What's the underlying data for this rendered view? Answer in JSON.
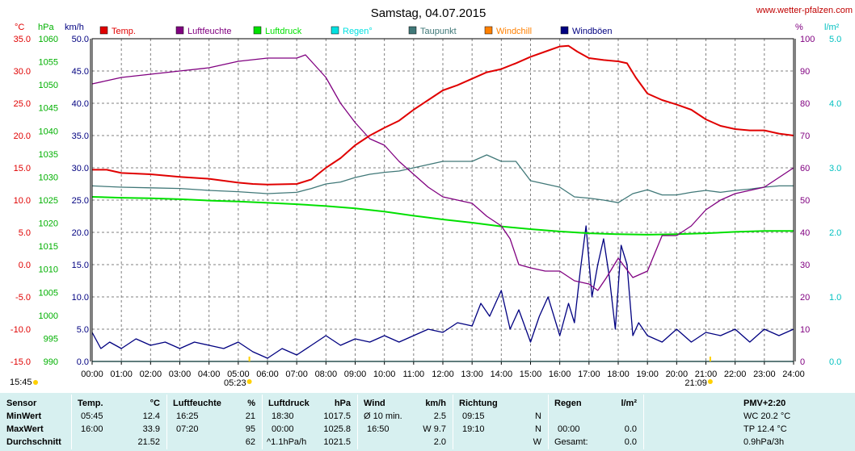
{
  "site": "www.wetter-pfalzen.com",
  "time_left": "15:45",
  "chart_data": {
    "type": "line",
    "title": "Samstag, 04.07.2015",
    "x_ticks": [
      "00:00",
      "01:00",
      "02:00",
      "03:00",
      "04:00",
      "05:00",
      "06:00",
      "07:00",
      "08:00",
      "09:00",
      "10:00",
      "11:00",
      "12:00",
      "13:00",
      "14:00",
      "15:00",
      "16:00",
      "17:00",
      "18:00",
      "19:00",
      "20:00",
      "21:00",
      "22:00",
      "23:00",
      "24:00"
    ],
    "xlim": [
      0,
      24
    ],
    "sunrise": {
      "t": 5.38,
      "label": "05:23"
    },
    "sunset": {
      "t": 21.15,
      "label": "21:09"
    },
    "axes": {
      "temp": {
        "unit": "°C",
        "ticks": [
          "35.0",
          "30.0",
          "25.0",
          "20.0",
          "15.0",
          "10.0",
          "5.0",
          "0.0",
          "-5.0",
          "-10.0",
          "-15.0"
        ],
        "ylim": [
          -15,
          35
        ]
      },
      "pressure": {
        "unit": "hPa",
        "ticks": [
          "1060",
          "1055",
          "1050",
          "1045",
          "1040",
          "1035",
          "1030",
          "1025",
          "1020",
          "1015",
          "1010",
          "1005",
          "1000",
          "995",
          "990"
        ],
        "ylim": [
          990,
          1060
        ]
      },
      "wind": {
        "unit": "km/h",
        "ticks": [
          "50.0",
          "45.0",
          "40.0",
          "35.0",
          "30.0",
          "25.0",
          "20.0",
          "15.0",
          "10.0",
          "5.0",
          "0.0"
        ],
        "ylim": [
          0,
          50
        ]
      },
      "humidity": {
        "unit": "%",
        "ticks": [
          "100",
          "90",
          "80",
          "70",
          "60",
          "50",
          "40",
          "30",
          "20",
          "10",
          "0"
        ],
        "ylim": [
          0,
          100
        ]
      },
      "rain": {
        "unit": "l/m²",
        "ticks": [
          "5.0",
          "4.0",
          "3.0",
          "2.0",
          "1.0",
          "0.0"
        ],
        "ylim": [
          0,
          5
        ]
      }
    },
    "series": [
      {
        "name": "Temp.",
        "color": "#e00000",
        "axis": "temp",
        "x": [
          0,
          0.5,
          1,
          2,
          3,
          4,
          5,
          5.5,
          6,
          7,
          7.5,
          8,
          8.5,
          9,
          9.5,
          10,
          10.5,
          11,
          11.5,
          12,
          12.5,
          13,
          13.5,
          14,
          14.5,
          15,
          15.5,
          16,
          16.3,
          16.6,
          17,
          17.5,
          18,
          18.3,
          18.6,
          19,
          19.5,
          20,
          20.5,
          21,
          21.5,
          22,
          22.5,
          23,
          23.5,
          24
        ],
        "y": [
          14.7,
          14.7,
          14.2,
          14.0,
          13.6,
          13.3,
          12.7,
          12.5,
          12.4,
          12.5,
          13.2,
          15,
          16.5,
          18.5,
          20,
          21.2,
          22.3,
          24,
          25.5,
          27,
          27.8,
          28.8,
          29.8,
          30.3,
          31.2,
          32.2,
          33,
          33.8,
          33.9,
          33,
          32,
          31.7,
          31.5,
          31.2,
          29,
          26.5,
          25.5,
          24.8,
          24,
          22.5,
          21.5,
          21.0,
          20.8,
          20.8,
          20.3,
          20.0
        ]
      },
      {
        "name": "Luftfeuchte",
        "color": "#800080",
        "axis": "humidity",
        "x": [
          0,
          0.5,
          1,
          2,
          3,
          4,
          5,
          6,
          7,
          7.3,
          7.6,
          8,
          8.5,
          9,
          9.5,
          10,
          10.5,
          11,
          11.5,
          12,
          12.5,
          13,
          13.5,
          14,
          14.3,
          14.6,
          15,
          15.5,
          16,
          16.5,
          17,
          17.3,
          17.6,
          18,
          18.5,
          19,
          19.5,
          20,
          20.5,
          21,
          21.5,
          22,
          22.5,
          23,
          23.5,
          24
        ],
        "y": [
          86,
          87,
          88,
          89,
          90,
          91,
          93,
          94,
          94,
          95,
          92,
          88,
          80,
          74,
          69,
          67,
          62,
          58,
          54,
          51,
          50,
          49,
          45,
          42,
          38,
          30,
          29,
          28,
          28,
          25,
          24,
          22,
          26,
          32,
          26,
          28,
          39,
          39,
          42,
          47,
          50,
          52,
          53,
          54,
          57,
          60
        ]
      },
      {
        "name": "Luftdruck",
        "color": "#00e000",
        "axis": "pressure",
        "x": [
          0,
          1,
          2,
          3,
          4,
          5,
          6,
          7,
          8,
          9,
          10,
          11,
          12,
          13,
          14,
          15,
          16,
          17,
          18,
          19,
          20,
          21,
          22,
          23,
          24
        ],
        "y": [
          1025.7,
          1025.5,
          1025.4,
          1025.2,
          1024.9,
          1024.7,
          1024.4,
          1024.1,
          1023.7,
          1023.2,
          1022.5,
          1021.6,
          1020.8,
          1020.1,
          1019.3,
          1018.7,
          1018.2,
          1017.8,
          1017.6,
          1017.5,
          1017.6,
          1017.8,
          1018.1,
          1018.3,
          1018.3
        ]
      },
      {
        "name": "Regen°",
        "color": "#00e0e0",
        "axis": "rain",
        "x": [
          0,
          24
        ],
        "y": [
          0.0,
          0.0
        ]
      },
      {
        "name": "Taupunkt",
        "color": "#407878",
        "axis": "temp",
        "x": [
          0,
          1,
          2,
          3,
          4,
          5,
          6,
          7,
          7.5,
          8,
          8.5,
          9,
          9.5,
          10,
          10.5,
          11,
          11.5,
          12,
          12.5,
          13,
          13.5,
          14,
          14.5,
          15,
          15.5,
          16,
          16.5,
          17,
          17.5,
          18,
          18.5,
          19,
          19.5,
          20,
          20.5,
          21,
          21.5,
          22,
          22.5,
          23,
          23.5,
          24
        ],
        "y": [
          12.2,
          12.0,
          11.9,
          11.8,
          11.5,
          11.3,
          11.0,
          11.2,
          11.8,
          12.5,
          12.8,
          13.5,
          14.0,
          14.3,
          14.5,
          15,
          15.5,
          16,
          16,
          16,
          17,
          16,
          16,
          13,
          12.5,
          12,
          10.5,
          10.3,
          10,
          9.6,
          11,
          11.6,
          10.8,
          10.8,
          11.2,
          11.5,
          11.2,
          11.5,
          11.7,
          12.0,
          12.2,
          12.2
        ]
      },
      {
        "name": "Windchill",
        "color": "#ff8000",
        "axis": "temp",
        "x": [],
        "y": []
      },
      {
        "name": "Windböen",
        "color": "#000080",
        "axis": "wind",
        "x": [
          0,
          0.3,
          0.6,
          1,
          1.5,
          2,
          2.5,
          3,
          3.5,
          4,
          4.5,
          5,
          5.5,
          6,
          6.5,
          7,
          7.5,
          8,
          8.5,
          9,
          9.5,
          10,
          10.5,
          11,
          11.5,
          12,
          12.5,
          13,
          13.3,
          13.6,
          14,
          14.3,
          14.6,
          15,
          15.3,
          15.6,
          16,
          16.3,
          16.5,
          16.7,
          16.9,
          17.1,
          17.3,
          17.5,
          17.7,
          17.9,
          18.1,
          18.3,
          18.5,
          18.7,
          19,
          19.5,
          20,
          20.5,
          21,
          21.5,
          22,
          22.5,
          23,
          23.5,
          24
        ],
        "y": [
          4.5,
          2,
          3,
          2,
          3.5,
          2.5,
          3,
          2,
          3,
          2.5,
          2,
          3,
          1.5,
          0.5,
          2,
          1,
          2.5,
          4,
          2.5,
          3.5,
          3,
          4,
          3,
          4,
          5,
          4.5,
          6,
          5.5,
          9,
          7,
          11,
          5,
          8,
          3,
          7,
          10,
          4,
          9,
          6,
          14,
          21,
          10,
          15,
          19,
          13,
          5,
          18,
          15,
          4,
          6,
          4,
          3,
          5,
          3,
          4.5,
          4,
          5,
          3,
          5,
          4,
          5
        ]
      }
    ]
  },
  "legend": [
    {
      "label": "Temp.",
      "color": "#e00000"
    },
    {
      "label": "Luftfeuchte",
      "color": "#800080"
    },
    {
      "label": "Luftdruck",
      "color": "#00e000"
    },
    {
      "label": "Regen°",
      "color": "#00e0e0"
    },
    {
      "label": "Taupunkt",
      "color": "#407878"
    },
    {
      "label": "Windchill",
      "color": "#ff8000"
    },
    {
      "label": "Windböen",
      "color": "#000080"
    }
  ],
  "stats": {
    "sensor": {
      "label": "Sensor",
      "min": "MinWert",
      "max": "MaxWert",
      "avg": "Durchschnitt"
    },
    "temp": {
      "h1": "Temp.",
      "h2": "°C",
      "min_t": "05:45",
      "min_v": "12.4",
      "max_t": "16:00",
      "max_v": "33.9",
      "avg_v": "21.52"
    },
    "hum": {
      "h1": "Luftfeuchte",
      "h2": "%",
      "min_t": "16:25",
      "min_v": "21",
      "max_t": "07:20",
      "max_v": "95",
      "avg_v": "62"
    },
    "press": {
      "h1": "Luftdruck",
      "h2": "hPa",
      "min_t": "18:30",
      "min_v": "1017.5",
      "max_t": "00:00",
      "max_v": "1025.8",
      "avg_l": "^1.1hPa/h",
      "avg_v": "1021.5"
    },
    "wind": {
      "h1": "Wind",
      "h2": "km/h",
      "min_l": "Ø 10 min.",
      "min_v": "2.5",
      "max_t": "16:50",
      "max_v": "W 9.7",
      "avg_v": "2.0"
    },
    "dir": {
      "h1": "Richtung",
      "min_t": "09:15",
      "min_v": "N",
      "max_t": "19:10",
      "max_v": "N",
      "avg_v": "W"
    },
    "rain": {
      "h1": "Regen",
      "h2": "l/m²",
      "max_t": "00:00",
      "max_v": "0.0",
      "avg_l": "Gesamt:",
      "avg_v": "0.0"
    },
    "pmv": {
      "h1": "PMV+2:20",
      "l1": "WC 20.2 °C",
      "l2": "TP 12.4 °C",
      "l3": "0.9hPa/3h"
    }
  }
}
